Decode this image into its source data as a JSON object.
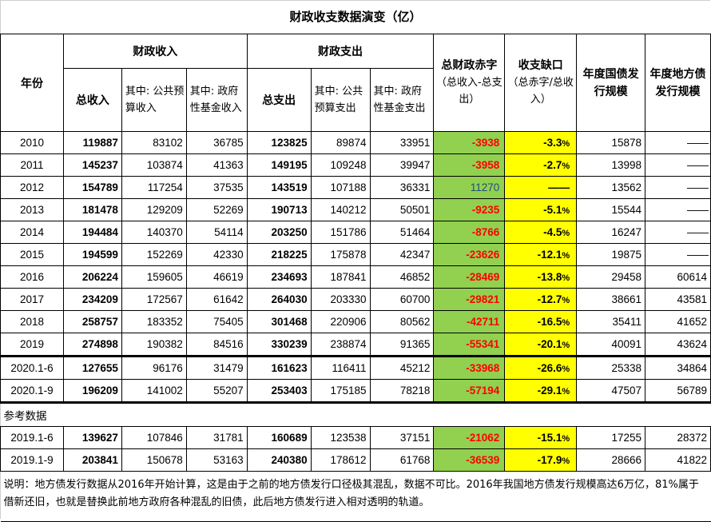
{
  "title": "财政收支数据演变（亿）",
  "headers": {
    "year": "年份",
    "revenue_group": "财政收入",
    "expenditure_group": "财政支出",
    "total_revenue": "总收入",
    "public_budget_revenue": "其中: 公共预算收入",
    "gov_fund_revenue": "其中: 政府性基金收入",
    "total_expenditure": "总支出",
    "public_budget_expenditure": "其中: 公共预算支出",
    "gov_fund_expenditure": "其中: 政府性基金支出",
    "deficit_title": "总财政赤字",
    "deficit_sub": "（总收入-总支出）",
    "gap_title": "收支缺口",
    "gap_sub": "（总赤字/总收入）",
    "national_debt": "年度国债发行规模",
    "local_debt": "年度地方债发行规模"
  },
  "rows": [
    {
      "year": "2010",
      "total_rev": "119887",
      "pub_rev": "83102",
      "fund_rev": "36785",
      "total_exp": "123825",
      "pub_exp": "89874",
      "fund_exp": "33951",
      "deficit": "-3938",
      "gap": "-3.3",
      "national": "15878",
      "local": "——"
    },
    {
      "year": "2011",
      "total_rev": "145237",
      "pub_rev": "103874",
      "fund_rev": "41363",
      "total_exp": "149195",
      "pub_exp": "109248",
      "fund_exp": "39947",
      "deficit": "-3958",
      "gap": "-2.7",
      "national": "13998",
      "local": "——"
    },
    {
      "year": "2012",
      "total_rev": "154789",
      "pub_rev": "117254",
      "fund_rev": "37535",
      "total_exp": "143519",
      "pub_exp": "107188",
      "fund_exp": "36331",
      "deficit": "11270",
      "gap": "——",
      "national": "13562",
      "local": "——"
    },
    {
      "year": "2013",
      "total_rev": "181478",
      "pub_rev": "129209",
      "fund_rev": "52269",
      "total_exp": "190713",
      "pub_exp": "140212",
      "fund_exp": "50501",
      "deficit": "-9235",
      "gap": "-5.1",
      "national": "15544",
      "local": "——"
    },
    {
      "year": "2014",
      "total_rev": "194484",
      "pub_rev": "140370",
      "fund_rev": "54114",
      "total_exp": "203250",
      "pub_exp": "151786",
      "fund_exp": "51464",
      "deficit": "-8766",
      "gap": "-4.5",
      "national": "16247",
      "local": "——"
    },
    {
      "year": "2015",
      "total_rev": "194599",
      "pub_rev": "152269",
      "fund_rev": "42330",
      "total_exp": "218225",
      "pub_exp": "175878",
      "fund_exp": "42347",
      "deficit": "-23626",
      "gap": "-12.1",
      "national": "19875",
      "local": "——"
    },
    {
      "year": "2016",
      "total_rev": "206224",
      "pub_rev": "159605",
      "fund_rev": "46619",
      "total_exp": "234693",
      "pub_exp": "187841",
      "fund_exp": "46852",
      "deficit": "-28469",
      "gap": "-13.8",
      "national": "29458",
      "local": "60614"
    },
    {
      "year": "2017",
      "total_rev": "234209",
      "pub_rev": "172567",
      "fund_rev": "61642",
      "total_exp": "264030",
      "pub_exp": "203330",
      "fund_exp": "60700",
      "deficit": "-29821",
      "gap": "-12.7",
      "national": "38661",
      "local": "43581"
    },
    {
      "year": "2018",
      "total_rev": "258757",
      "pub_rev": "183352",
      "fund_rev": "75405",
      "total_exp": "301468",
      "pub_exp": "220906",
      "fund_exp": "80562",
      "deficit": "-42711",
      "gap": "-16.5",
      "national": "35411",
      "local": "41652"
    },
    {
      "year": "2019",
      "total_rev": "274898",
      "pub_rev": "190382",
      "fund_rev": "84516",
      "total_exp": "330239",
      "pub_exp": "238874",
      "fund_exp": "91365",
      "deficit": "-55341",
      "gap": "-20.1",
      "national": "40091",
      "local": "43624"
    },
    {
      "year": "2020.1-6",
      "total_rev": "127655",
      "pub_rev": "96176",
      "fund_rev": "31479",
      "total_exp": "161623",
      "pub_exp": "116411",
      "fund_exp": "45212",
      "deficit": "-33968",
      "gap": "-26.6",
      "national": "25338",
      "local": "34864"
    },
    {
      "year": "2020.1-9",
      "total_rev": "196209",
      "pub_rev": "141002",
      "fund_rev": "55207",
      "total_exp": "253403",
      "pub_exp": "175185",
      "fund_exp": "78218",
      "deficit": "-57194",
      "gap": "-29.1",
      "national": "47507",
      "local": "56789"
    }
  ],
  "reference_label": "参考数据",
  "reference_rows": [
    {
      "year": "2019.1-6",
      "total_rev": "139627",
      "pub_rev": "107846",
      "fund_rev": "31781",
      "total_exp": "160689",
      "pub_exp": "123538",
      "fund_exp": "37151",
      "deficit": "-21062",
      "gap": "-15.1",
      "national": "17255",
      "local": "28372"
    },
    {
      "year": "2019.1-9",
      "total_rev": "203841",
      "pub_rev": "150678",
      "fund_rev": "53163",
      "total_exp": "240380",
      "pub_exp": "178612",
      "fund_exp": "61768",
      "deficit": "-36539",
      "gap": "-17.9",
      "national": "28666",
      "local": "41822"
    }
  ],
  "percent_sign": "%",
  "note": "说明：地方债发行数据从2016年开始计算，这是由于之前的地方债发行口径极其混乱，数据不可比。2016年我国地方债发行规模高达6万亿，81%属于借新还旧，也就是替换此前地方政府各种混乱的旧债，此后地方债发行进入相对透明的轨道。",
  "colors": {
    "deficit_bg": "#92d050",
    "gap_bg": "#ffff00",
    "negative_text": "#ff0000",
    "positive_text": "#1f4e79"
  }
}
